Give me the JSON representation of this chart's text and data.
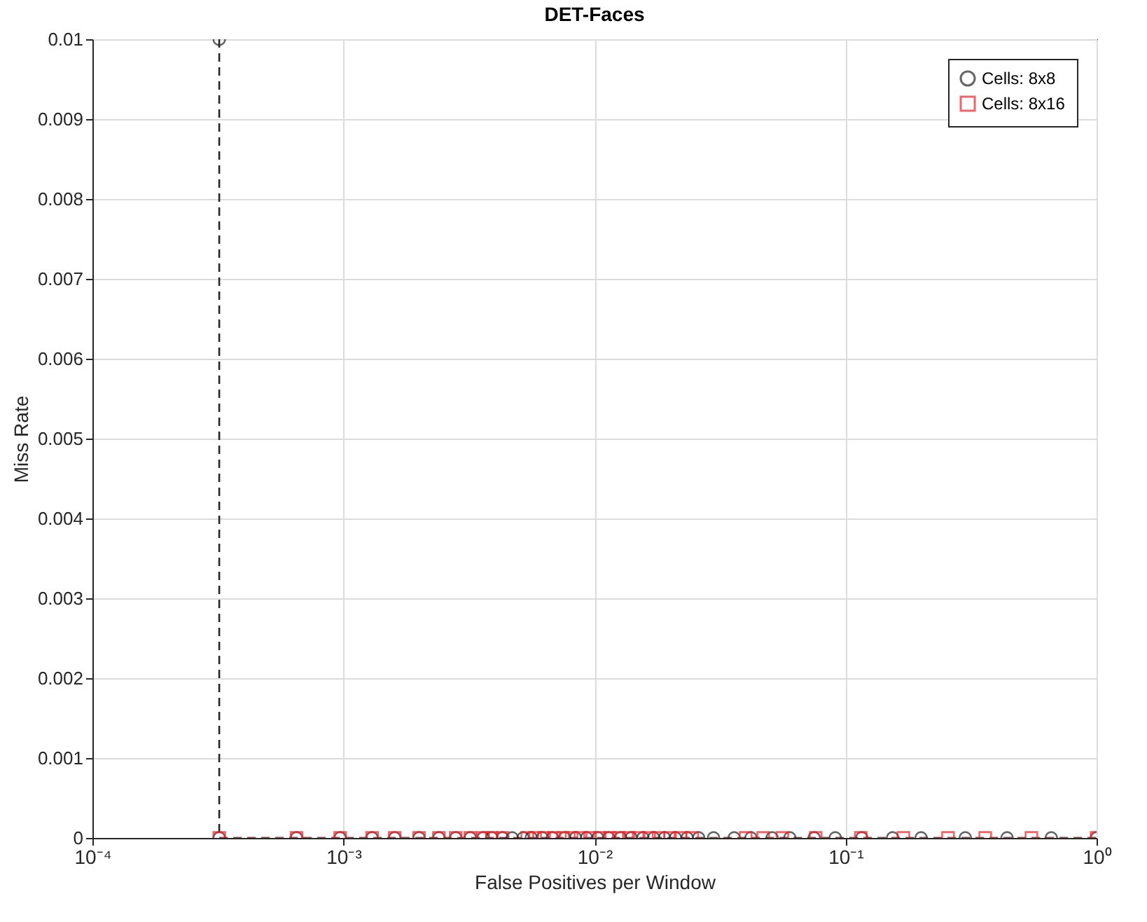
{
  "chart_data": {
    "type": "line",
    "title": "DET-Faces",
    "xlabel": "False Positives per Window",
    "ylabel": "Miss Rate",
    "log": "x",
    "grid": true,
    "legend": "top right",
    "line_style": "dashed",
    "xlim": [
      0.0001,
      1
    ],
    "xticks": [
      {
        "value": 0.0001,
        "label": "10⁻⁴"
      },
      {
        "value": 0.001,
        "label": "10⁻³"
      },
      {
        "value": 0.01,
        "label": "10⁻²"
      },
      {
        "value": 0.1,
        "label": "10⁻¹"
      },
      {
        "value": 1,
        "label": "10⁰"
      }
    ],
    "ylim": [
      0,
      0.01
    ],
    "yticks": [
      0,
      0.001,
      0.002,
      0.003,
      0.004,
      0.005,
      0.006,
      0.007,
      0.008,
      0.009,
      0.01
    ],
    "series": [
      {
        "name": "Cells: 8x8",
        "color": "#262626",
        "marker": "circle",
        "x": [
          0.00032,
          0.00032,
          0.00065,
          0.00097,
          0.0013,
          0.0016,
          0.002,
          0.0024,
          0.0028,
          0.0032,
          0.0036,
          0.0039,
          0.0043,
          0.0047,
          0.0052,
          0.0056,
          0.0062,
          0.0068,
          0.0076,
          0.0084,
          0.0093,
          0.0103,
          0.0114,
          0.0127,
          0.014,
          0.0156,
          0.0172,
          0.019,
          0.021,
          0.0234,
          0.026,
          0.0298,
          0.036,
          0.042,
          0.051,
          0.06,
          0.075,
          0.091,
          0.116,
          0.154,
          0.2,
          0.3,
          0.44,
          0.66,
          1
        ],
        "values": [
          0.01,
          0,
          0,
          0,
          0,
          0,
          0,
          0,
          0,
          0,
          0,
          0,
          0,
          0,
          0,
          0,
          0,
          0,
          0,
          0,
          0,
          0,
          0,
          0,
          0,
          0,
          0,
          0,
          0,
          0,
          0,
          0,
          0,
          0,
          0,
          0,
          0,
          0,
          0,
          0,
          0,
          0,
          0,
          0,
          0
        ]
      },
      {
        "name": "Cells: 8x16",
        "color": "#e8262b",
        "marker": "square",
        "x": [
          0.00032,
          0.00065,
          0.00097,
          0.0013,
          0.0016,
          0.002,
          0.0024,
          0.0028,
          0.0032,
          0.0036,
          0.0039,
          0.0043,
          0.0054,
          0.0058,
          0.0063,
          0.0069,
          0.0075,
          0.0081,
          0.0088,
          0.0096,
          0.0105,
          0.0115,
          0.0125,
          0.0137,
          0.015,
          0.0165,
          0.018,
          0.02,
          0.022,
          0.0245,
          0.04,
          0.047,
          0.056,
          0.076,
          0.115,
          0.17,
          0.256,
          0.36,
          0.55,
          1
        ],
        "values": [
          0,
          0,
          0,
          0,
          0,
          0,
          0,
          0,
          0,
          0,
          0,
          0,
          0,
          0,
          0,
          0,
          0,
          0,
          0,
          0,
          0,
          0,
          0,
          0,
          0,
          0,
          0,
          0,
          0,
          0,
          0,
          0,
          0,
          0,
          0,
          0,
          0,
          0,
          0,
          0
        ]
      }
    ]
  }
}
